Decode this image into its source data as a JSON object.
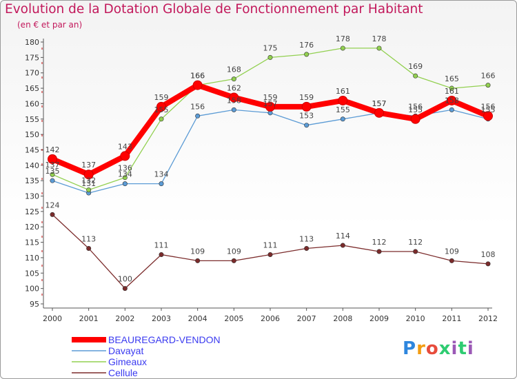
{
  "header": {
    "title": "Evolution de la Dotation Globale de Fonctionnement par Habitant",
    "subtitle": "(en € et par an)"
  },
  "logo": {
    "text": "Proxiti"
  },
  "chart_data": {
    "type": "line",
    "title": "Evolution de la Dotation Globale de Fonctionnement par Habitant",
    "subtitle": "(en € et par an)",
    "x": [
      2000,
      2001,
      2002,
      2003,
      2004,
      2005,
      2006,
      2007,
      2008,
      2009,
      2010,
      2011,
      2012
    ],
    "ylim": [
      95,
      180
    ],
    "yticks": [
      95,
      100,
      105,
      110,
      115,
      120,
      125,
      130,
      135,
      140,
      145,
      150,
      155,
      160,
      165,
      170,
      175,
      180
    ],
    "grid": false,
    "legend_position": "bottom-left",
    "series": [
      {
        "name": "BEAUREGARD-VENDON",
        "color": "#ff0000",
        "values": [
          142,
          137,
          143,
          159,
          166,
          162,
          159,
          159,
          161,
          157,
          155,
          161,
          156
        ]
      },
      {
        "name": "Davayat",
        "color": "#5b9bd5",
        "values": [
          135,
          131,
          134,
          134,
          156,
          158,
          157,
          153,
          155,
          157,
          156,
          158,
          155
        ]
      },
      {
        "name": "Gimeaux",
        "color": "#92d050",
        "values": [
          137,
          132,
          136,
          155,
          166,
          168,
          175,
          176,
          178,
          178,
          169,
          165,
          166
        ]
      },
      {
        "name": "Cellule",
        "color": "#7b2b2b",
        "values": [
          124,
          113,
          100,
          111,
          109,
          109,
          111,
          113,
          114,
          112,
          112,
          109,
          108
        ]
      }
    ]
  }
}
